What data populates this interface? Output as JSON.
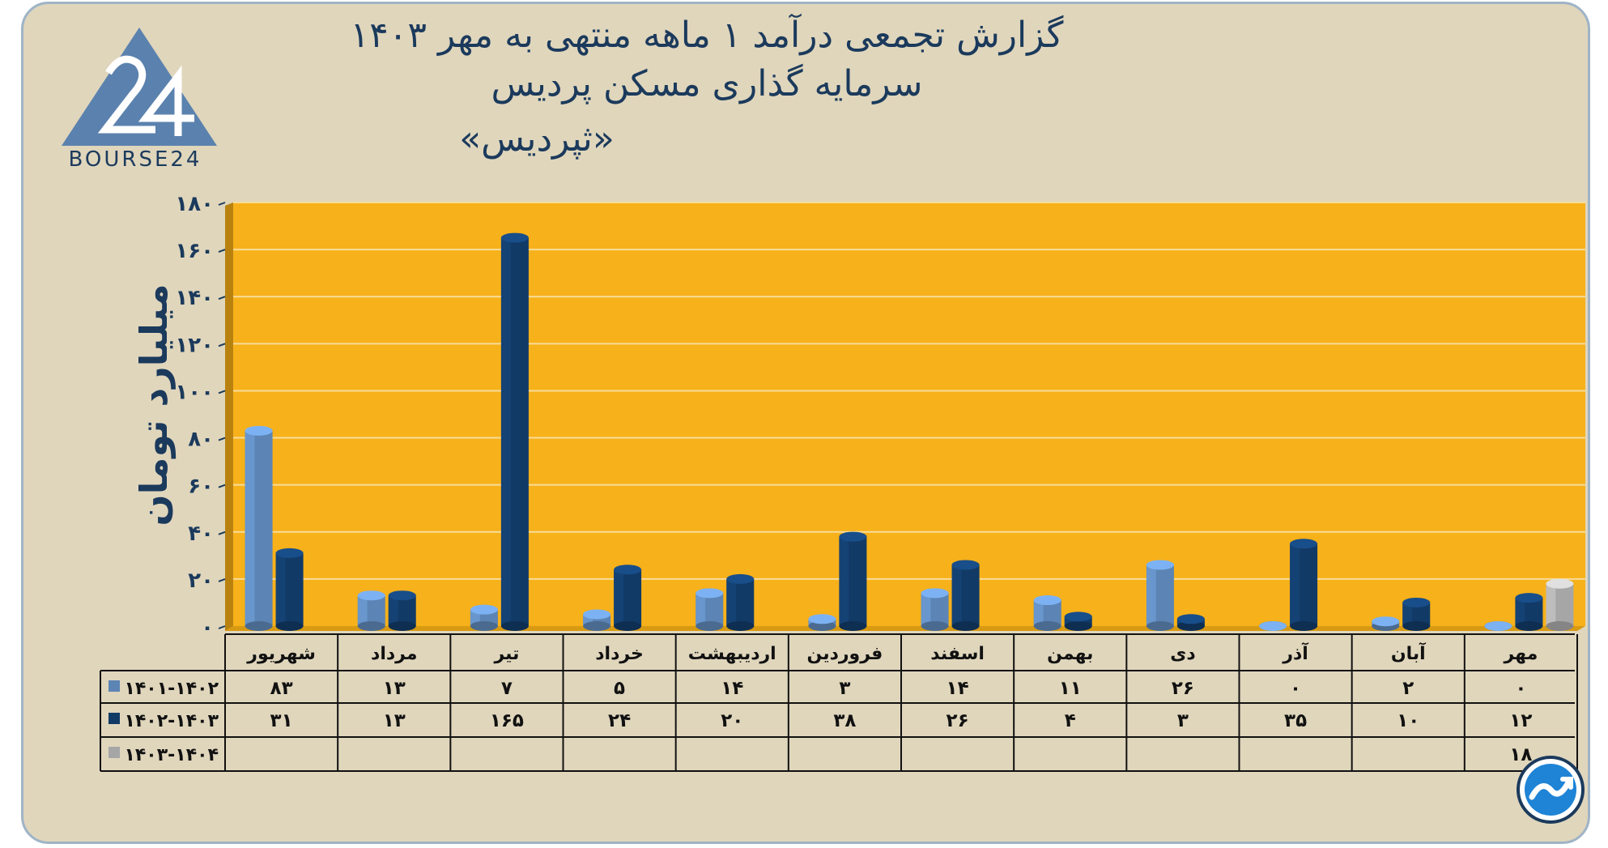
{
  "title_lines": [
    "گزارش تجمعی درآمد ۱ ماهه منتهی به مهر ۱۴۰۳",
    "سرمایه گذاری مسکن پردیس",
    "«ثپردیس»"
  ],
  "logo_text": "BOURSE24",
  "colors": {
    "plot_bg": "#f7b11a",
    "plot_wall": "#b9820f",
    "series_1401_1402": "#5c84b4",
    "series_1402_1403": "#123a66",
    "series_1403_1404": "#a6a6a6",
    "text": "#1b3a5c"
  },
  "chart_data": {
    "type": "bar",
    "ylabel": "میلیارد تومان",
    "ylim": [
      0,
      180
    ],
    "yticks": [
      0,
      20,
      40,
      60,
      80,
      100,
      120,
      140,
      160,
      180
    ],
    "ytick_labels": [
      "۰",
      "۲۰",
      "۴۰",
      "۶۰",
      "۸۰",
      "۱۰۰",
      "۱۲۰",
      "۱۴۰",
      "۱۶۰",
      "۱۸۰"
    ],
    "grid": true,
    "categories": [
      "مهر",
      "آبان",
      "آذر",
      "دی",
      "بهمن",
      "اسفند",
      "فروردین",
      "اردیبهشت",
      "خرداد",
      "تیر",
      "مرداد",
      "شهریور"
    ],
    "series": [
      {
        "name": "۱۴۰۱-۱۴۰۲",
        "values": [
          0,
          2,
          0,
          26,
          11,
          14,
          3,
          14,
          5,
          7,
          13,
          83
        ],
        "labels": [
          "۰",
          "۲",
          "۰",
          "۲۶",
          "۱۱",
          "۱۴",
          "۳",
          "۱۴",
          "۵",
          "۷",
          "۱۳",
          "۸۳"
        ]
      },
      {
        "name": "۱۴۰۲-۱۴۰۳",
        "values": [
          12,
          10,
          35,
          3,
          4,
          26,
          38,
          20,
          24,
          165,
          13,
          31
        ],
        "labels": [
          "۱۲",
          "۱۰",
          "۳۵",
          "۳",
          "۴",
          "۲۶",
          "۳۸",
          "۲۰",
          "۲۴",
          "۱۶۵",
          "۱۳",
          "۳۱"
        ]
      },
      {
        "name": "۱۴۰۳-۱۴۰۴",
        "values": [
          18,
          null,
          null,
          null,
          null,
          null,
          null,
          null,
          null,
          null,
          null,
          null
        ],
        "labels": [
          "۱۸",
          "",
          "",
          "",
          "",
          "",
          "",
          "",
          "",
          "",
          "",
          ""
        ]
      }
    ]
  }
}
